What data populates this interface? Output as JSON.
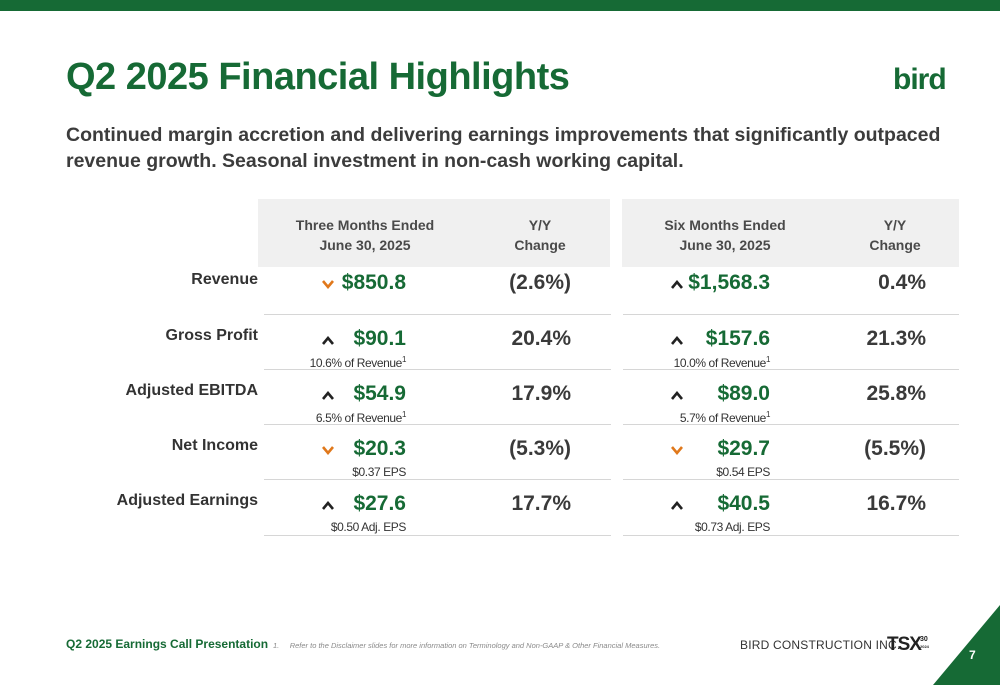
{
  "slide": {
    "title": "Q2 2025 Financial Highlights",
    "logo": "bird",
    "subtitle": "Continued margin accretion and delivering earnings improvements that significantly outpaced revenue growth. Seasonal investment in non-cash working capital."
  },
  "table": {
    "headers": {
      "three_months_l1": "Three Months Ended",
      "three_months_l2": "June 30, 2025",
      "yy1_l1": "Y/Y",
      "yy1_l2": "Change",
      "six_months_l1": "Six Months Ended",
      "six_months_l2": "June 30, 2025",
      "yy2_l1": "Y/Y",
      "yy2_l2": "Change"
    },
    "rows": [
      {
        "label": "Revenue",
        "q_dir": "down",
        "q_value": "$850.8",
        "q_sub": "",
        "q_sup": "",
        "q_change": "(2.6%)",
        "h_dir": "up",
        "h_value": "$1,568.3",
        "h_sub": "",
        "h_sup": "",
        "h_change": "0.4%"
      },
      {
        "label": "Gross Profit",
        "q_dir": "up",
        "q_value": "$90.1",
        "q_sub": "10.6% of Revenue",
        "q_sup": "1",
        "q_change": "20.4%",
        "h_dir": "up",
        "h_value": "$157.6",
        "h_sub": "10.0% of Revenue",
        "h_sup": "1",
        "h_change": "21.3%"
      },
      {
        "label": "Adjusted EBITDA",
        "q_dir": "up",
        "q_value": "$54.9",
        "q_sub": "6.5% of Revenue",
        "q_sup": "1",
        "q_change": "17.9%",
        "h_dir": "up",
        "h_value": "$89.0",
        "h_sub": "5.7% of Revenue",
        "h_sup": "1",
        "h_change": "25.8%"
      },
      {
        "label": "Net Income",
        "q_dir": "down",
        "q_value": "$20.3",
        "q_sub": "$0.37 EPS",
        "q_sup": "",
        "q_change": "(5.3%)",
        "h_dir": "down",
        "h_value": "$29.7",
        "h_sub": "$0.54 EPS",
        "h_sup": "",
        "h_change": "(5.5%)"
      },
      {
        "label": "Adjusted Earnings",
        "q_dir": "up",
        "q_value": "$27.6",
        "q_sub": "$0.50 Adj. EPS",
        "q_sup": "",
        "q_change": "17.7%",
        "h_dir": "up",
        "h_value": "$40.5",
        "h_sub": "$0.73 Adj. EPS",
        "h_sup": "",
        "h_change": "16.7%"
      }
    ]
  },
  "icons": {
    "up": "chevron-up-icon",
    "down": "chevron-down-icon"
  },
  "colors": {
    "brand_green": "#166a35",
    "down_orange": "#e0781b"
  },
  "footer": {
    "presentation": "Q2 2025 Earnings Call Presentation",
    "footnote_num": "1.",
    "footnote": "Refer to the Disclaimer slides for more information on Terminology and Non-GAAP & Other Financial Measures.",
    "company": "BIRD CONSTRUCTION INC.",
    "tsx": "TSX",
    "tsx_badge_num": "30",
    "tsx_badge_year": "2024",
    "page": "7"
  }
}
